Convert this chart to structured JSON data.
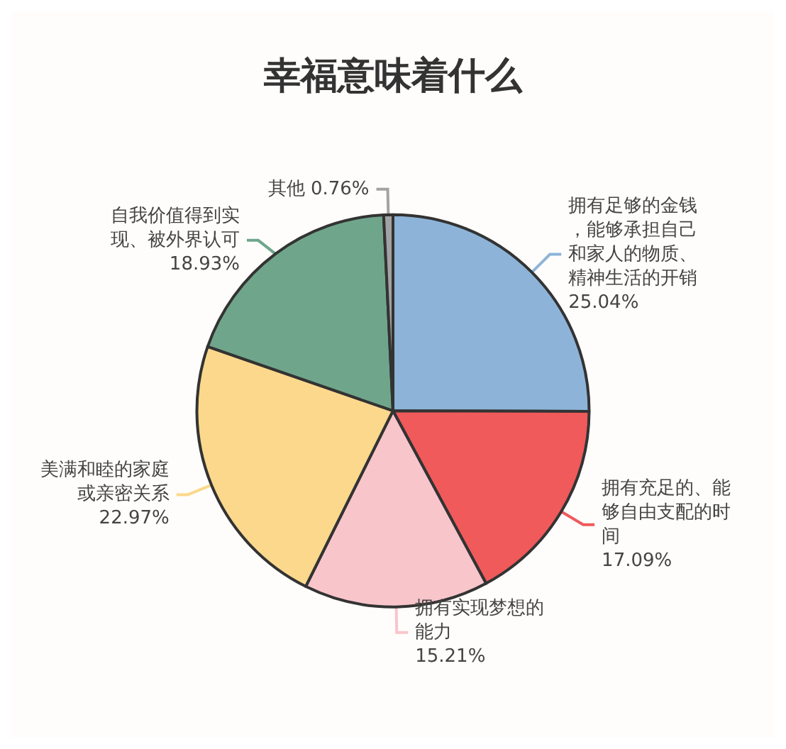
{
  "chart_data": {
    "type": "pie",
    "title": "幸福意味着什么",
    "categories": [
      "拥有足够的金钱，能够承担自己和家人的物质、精神生活的开销",
      "拥有充足的、能够自由支配的时间",
      "拥有实现梦想的能力",
      "美满和睦的家庭或亲密关系",
      "自我价值得到实现、被外界认可",
      "其他"
    ],
    "values": [
      25.04,
      17.09,
      15.21,
      22.97,
      18.93,
      0.76
    ],
    "value_labels": [
      "25.04%",
      "17.09%",
      "15.21%",
      "22.97%",
      "18.93%",
      "0.76%"
    ],
    "colors": [
      "#8db4d8",
      "#f05a5b",
      "#f8c5cb",
      "#fbd88c",
      "#6fa68b",
      "#a3a3a3"
    ],
    "legend": false
  }
}
